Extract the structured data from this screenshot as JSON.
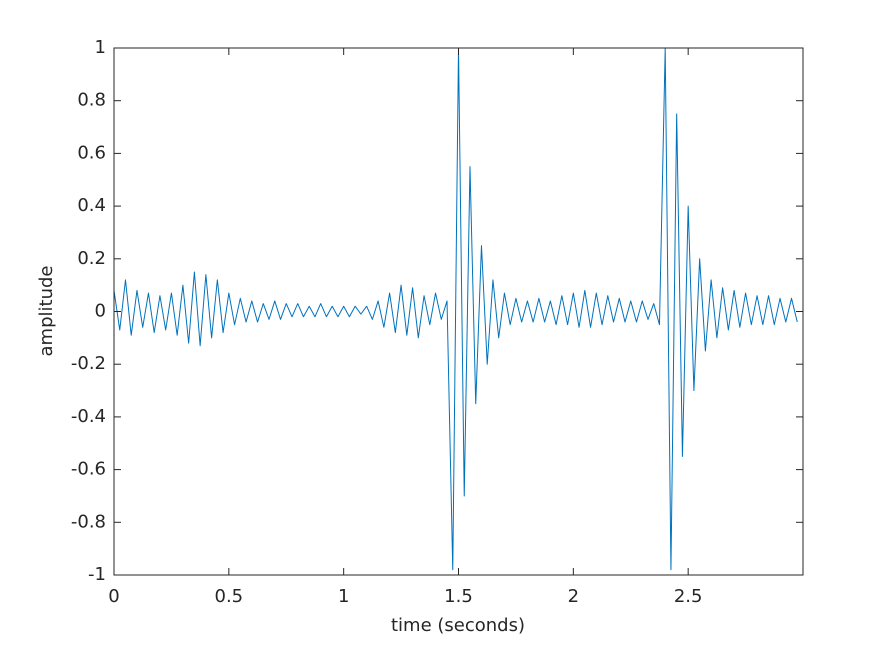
{
  "chart_data": {
    "type": "line",
    "x_label": "time (seconds)",
    "y_label": "amplitude",
    "xlim": [
      0,
      3.0
    ],
    "ylim": [
      -1,
      1
    ],
    "xticks": [
      0,
      0.5,
      1,
      1.5,
      2,
      2.5
    ],
    "yticks": [
      -1,
      -0.8,
      -0.6,
      -0.4,
      -0.2,
      0,
      0.2,
      0.4,
      0.6,
      0.8,
      1
    ],
    "grid": false,
    "x": [
      0,
      0.025,
      0.05,
      0.075,
      0.1,
      0.125,
      0.15,
      0.175,
      0.2,
      0.225,
      0.25,
      0.275,
      0.3,
      0.325,
      0.35,
      0.375,
      0.4,
      0.425,
      0.45,
      0.475,
      0.5,
      0.525,
      0.55,
      0.575,
      0.6,
      0.625,
      0.65,
      0.675,
      0.7,
      0.725,
      0.75,
      0.775,
      0.8,
      0.825,
      0.85,
      0.875,
      0.9,
      0.925,
      0.95,
      0.975,
      1.0,
      1.025,
      1.05,
      1.075,
      1.1,
      1.125,
      1.15,
      1.175,
      1.2,
      1.225,
      1.25,
      1.275,
      1.3,
      1.325,
      1.35,
      1.375,
      1.4,
      1.425,
      1.45,
      1.475,
      1.5,
      1.525,
      1.55,
      1.575,
      1.6,
      1.625,
      1.65,
      1.675,
      1.7,
      1.725,
      1.75,
      1.775,
      1.8,
      1.825,
      1.85,
      1.875,
      1.9,
      1.925,
      1.95,
      1.975,
      2.0,
      2.025,
      2.05,
      2.075,
      2.1,
      2.125,
      2.15,
      2.175,
      2.2,
      2.225,
      2.25,
      2.275,
      2.3,
      2.325,
      2.35,
      2.375,
      2.4,
      2.425,
      2.45,
      2.475,
      2.5,
      2.525,
      2.55,
      2.575,
      2.6,
      2.625,
      2.65,
      2.675,
      2.7,
      2.725,
      2.75,
      2.775,
      2.8,
      2.825,
      2.85,
      2.875,
      2.9,
      2.925,
      2.95,
      2.975
    ],
    "series": [
      {
        "color": "#0072bd",
        "values": [
          0.08,
          -0.07,
          0.12,
          -0.09,
          0.08,
          -0.06,
          0.07,
          -0.08,
          0.06,
          -0.07,
          0.07,
          -0.09,
          0.1,
          -0.12,
          0.15,
          -0.13,
          0.14,
          -0.1,
          0.12,
          -0.08,
          0.07,
          -0.05,
          0.05,
          -0.04,
          0.04,
          -0.04,
          0.03,
          -0.03,
          0.04,
          -0.03,
          0.03,
          -0.02,
          0.03,
          -0.02,
          0.02,
          -0.02,
          0.03,
          -0.02,
          0.02,
          -0.02,
          0.02,
          -0.02,
          0.02,
          -0.01,
          0.02,
          -0.03,
          0.04,
          -0.06,
          0.07,
          -0.08,
          0.1,
          -0.09,
          0.09,
          -0.1,
          0.06,
          -0.05,
          0.07,
          -0.03,
          0.04,
          -0.98,
          1,
          -0.7,
          0.55,
          -0.35,
          0.25,
          -0.2,
          0.12,
          -0.1,
          0.07,
          -0.05,
          0.05,
          -0.04,
          0.04,
          -0.04,
          0.05,
          -0.04,
          0.04,
          -0.05,
          0.06,
          -0.05,
          0.07,
          -0.06,
          0.08,
          -0.06,
          0.07,
          -0.05,
          0.06,
          -0.04,
          0.05,
          -0.04,
          0.04,
          -0.04,
          0.04,
          -0.03,
          0.03,
          -0.05,
          1,
          -0.98,
          0.75,
          -0.55,
          0.4,
          -0.3,
          0.2,
          -0.15,
          0.12,
          -0.1,
          0.09,
          -0.07,
          0.08,
          -0.06,
          0.07,
          -0.05,
          0.06,
          -0.05,
          0.06,
          -0.05,
          0.05,
          -0.04,
          0.05,
          -0.04
        ]
      }
    ]
  }
}
